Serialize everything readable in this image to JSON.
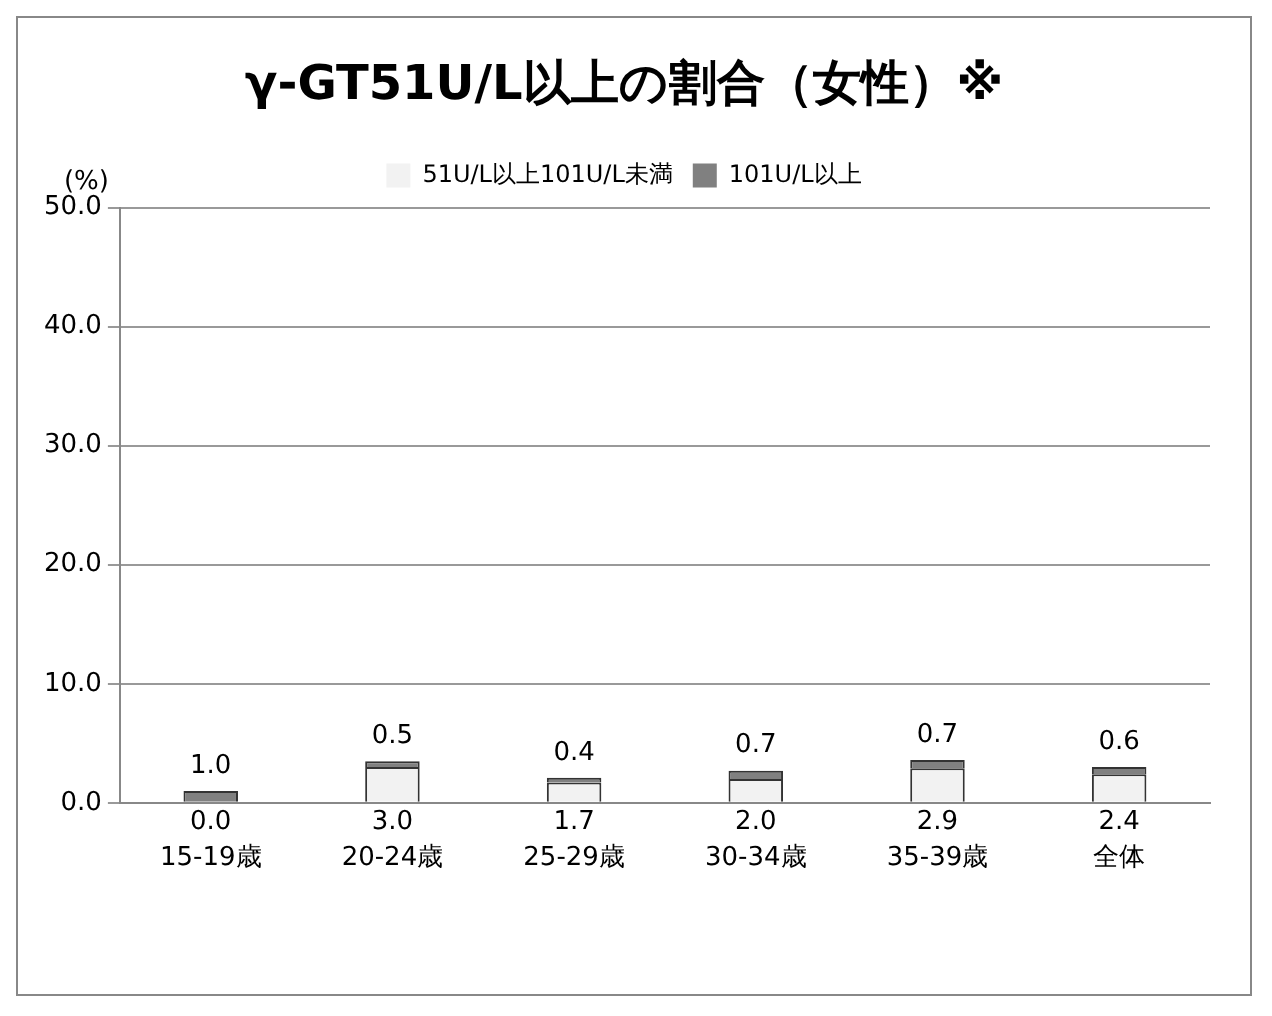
{
  "chart_data": {
    "type": "bar",
    "title": "γ-GT51U/L以上の割合（女性）※",
    "ylabel": "(%)",
    "categories": [
      "15-19歳",
      "20-24歳",
      "25-29歳",
      "30-34歳",
      "35-39歳",
      "全体"
    ],
    "stacked": true,
    "series": [
      {
        "name": "51U/L以上101U/L未満",
        "color": "#f2f2f2",
        "values": [
          0.0,
          3.0,
          1.7,
          2.0,
          2.9,
          2.4
        ],
        "value_labels": [
          "0.0",
          "3.0",
          "1.7",
          "2.0",
          "2.9",
          "2.4"
        ]
      },
      {
        "name": "101U/L以上",
        "color": "#808080",
        "values": [
          1.0,
          0.5,
          0.4,
          0.7,
          0.7,
          0.6
        ],
        "value_labels": [
          "1.0",
          "0.5",
          "0.4",
          "0.7",
          "0.7",
          "0.6"
        ]
      }
    ],
    "ylim": [
      0,
      50
    ],
    "yticks": [
      {
        "value": 0,
        "label": "0.0"
      },
      {
        "value": 10,
        "label": "10.0"
      },
      {
        "value": 20,
        "label": "20.0"
      },
      {
        "value": 30,
        "label": "30.0"
      },
      {
        "value": 40,
        "label": "40.0"
      },
      {
        "value": 50,
        "label": "50.0"
      }
    ],
    "grid": "y",
    "legend": "top"
  }
}
